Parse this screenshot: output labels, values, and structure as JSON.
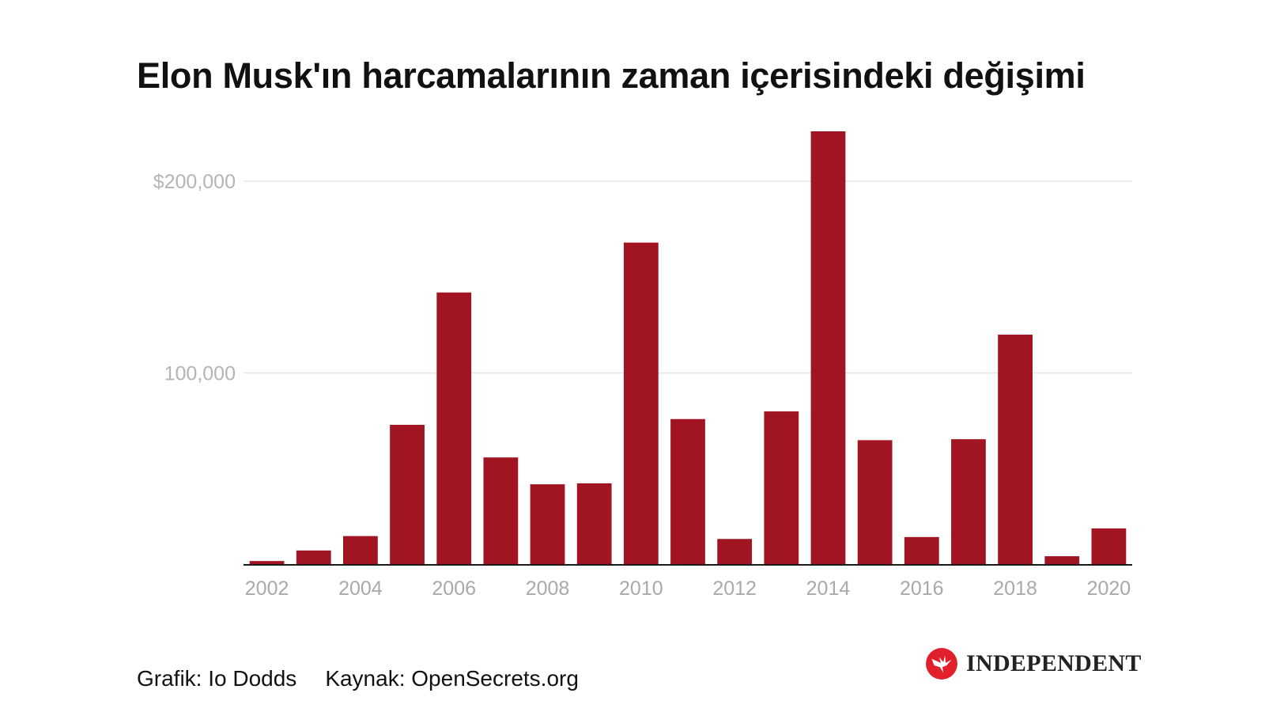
{
  "chart_data": {
    "type": "bar",
    "title": "Elon Musk'ın harcamalarının zaman içerisindeki değişimi",
    "xlabel": "",
    "ylabel": "",
    "categories": [
      "2002",
      "2003",
      "2004",
      "2005",
      "2006",
      "2007",
      "2008",
      "2009",
      "2010",
      "2011",
      "2012",
      "2013",
      "2014",
      "2015",
      "2016",
      "2017",
      "2018",
      "2019",
      "2020"
    ],
    "values": [
      2000,
      7500,
      15000,
      73000,
      142000,
      56000,
      42000,
      42500,
      168000,
      76000,
      13500,
      80000,
      226000,
      65000,
      14500,
      65500,
      120000,
      4500,
      19000
    ],
    "ylim": [
      0,
      226000
    ],
    "y_ticks": [
      {
        "value": 100000,
        "label": "100,000"
      },
      {
        "value": 200000,
        "label": "$200,000"
      }
    ],
    "x_tick_labels": [
      "2002",
      "2004",
      "2006",
      "2008",
      "2010",
      "2012",
      "2014",
      "2016",
      "2018",
      "2020"
    ],
    "bar_color": "#a11421",
    "grid": true,
    "legend": "none"
  },
  "footer": {
    "credit": "Grafik: Io Dodds",
    "source": "Kaynak: OpenSecrets.org"
  },
  "brand": {
    "name": "INDEPENDENT",
    "logo_icon": "eagle-icon",
    "logo_color": "#e2202c"
  }
}
